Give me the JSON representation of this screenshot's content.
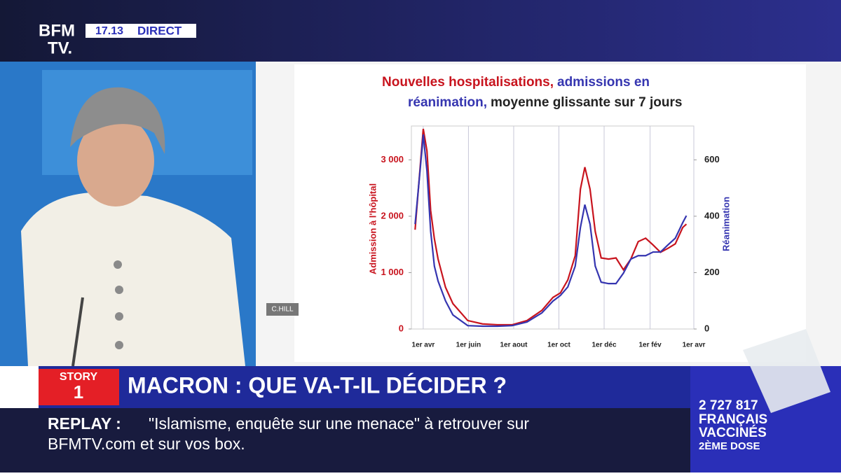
{
  "header": {
    "logo_top": "BFM",
    "logo_bottom": "TV.",
    "time": "17.13",
    "live": "DIRECT"
  },
  "chart_data": {
    "type": "line",
    "title": [
      "Nouvelles hospitalisations,",
      "admissions en",
      "réanimation,",
      "moyenne glissante sur 7 jours"
    ],
    "y_label": "Admission à l'hôpital",
    "y2_label": "Réanimation",
    "credit": "C.HILL",
    "x": [
      -11,
      -4,
      0,
      5,
      10,
      15,
      20,
      30,
      40,
      60,
      80,
      100,
      120,
      140,
      160,
      175,
      185,
      195,
      205,
      212,
      218,
      225,
      232,
      240,
      250,
      260,
      270,
      280,
      290,
      300,
      310,
      320,
      330,
      340,
      350,
      355
    ],
    "xlim": [
      -16,
      365
    ],
    "xticks": [
      {
        "value": 0,
        "label": "1er avr"
      },
      {
        "value": 61,
        "label": "1er juin"
      },
      {
        "value": 122,
        "label": "1er aout"
      },
      {
        "value": 183,
        "label": "1er oct"
      },
      {
        "value": 244,
        "label": "1er déc"
      },
      {
        "value": 306,
        "label": "1er fév"
      },
      {
        "value": 365,
        "label": "1er avr"
      }
    ],
    "ylim": [
      0,
      3600
    ],
    "yticks": [
      0,
      {
        "value": 1000,
        "label": "1 000"
      },
      {
        "value": 2000,
        "label": "2 000"
      },
      {
        "value": 3000,
        "label": "3 000"
      }
    ],
    "y2lim": [
      0,
      720
    ],
    "y2ticks": [
      0,
      200,
      400,
      600
    ],
    "grid": true,
    "series": [
      {
        "color": "#c8141e",
        "values": [
          1760,
          2900,
          3550,
          3160,
          2100,
          1600,
          1240,
          740,
          450,
          150,
          90,
          75,
          75,
          150,
          330,
          560,
          640,
          870,
          1300,
          2480,
          2870,
          2480,
          1730,
          1260,
          1240,
          1260,
          1050,
          1240,
          1550,
          1610,
          1490,
          1360,
          1430,
          1510,
          1800,
          1860
        ]
      },
      {
        "color": "#3535b0",
        "axis": "y2",
        "values": [
          372,
          570,
          690,
          560,
          347,
          223,
          170,
          100,
          50,
          12,
          10,
          10,
          12,
          25,
          57,
          99,
          119,
          149,
          223,
          360,
          441,
          372,
          223,
          166,
          161,
          161,
          198,
          248,
          260,
          260,
          273,
          273,
          298,
          322,
          377,
          402
        ]
      }
    ]
  },
  "banner": {
    "story": "STORY",
    "story_number": "1",
    "headline": "MACRON : QUE VA-T-IL DÉCIDER ?"
  },
  "ticker": {
    "label": "REPLAY :",
    "line1": "\"Islamisme, enquête sur une menace\" à retrouver sur",
    "line2": "BFMTV.com et sur vos box."
  },
  "vaccine": {
    "count": "2 727 817",
    "line1": "FRANÇAIS",
    "line2": "VACCINÉS",
    "line3": "2ÈME DOSE"
  }
}
